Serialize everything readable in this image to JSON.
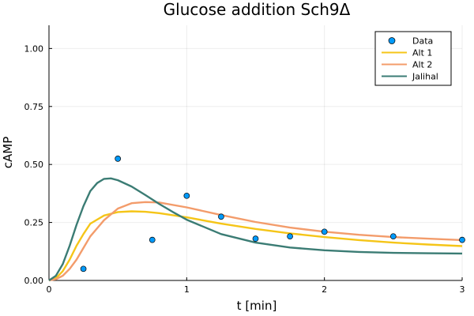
{
  "chart_data": {
    "type": "line",
    "title": "Glucose addition Sch9Δ",
    "xlabel": "t [min]",
    "ylabel": "cAMP",
    "xlim": [
      0,
      3
    ],
    "ylim": [
      0,
      1.1
    ],
    "x_ticks": [
      0,
      1,
      2,
      3
    ],
    "x_tick_labels": [
      "0",
      "1",
      "2",
      "3"
    ],
    "y_ticks": [
      0,
      0.25,
      0.5,
      0.75,
      1.0
    ],
    "y_tick_labels": [
      "0.00",
      "0.25",
      "0.50",
      "0.75",
      "1.00"
    ],
    "grid": true,
    "legend_position": "top-right",
    "scatter": {
      "name": "Data",
      "color": "#009AFA",
      "x": [
        0.25,
        0.5,
        0.75,
        1.0,
        1.25,
        1.5,
        1.75,
        2.0,
        2.5,
        3.0
      ],
      "y": [
        0.05,
        0.525,
        0.175,
        0.365,
        0.275,
        0.18,
        0.19,
        0.21,
        0.19,
        0.175
      ]
    },
    "series": [
      {
        "name": "Alt 1",
        "color": "#F5C518",
        "x": [
          0,
          0.05,
          0.1,
          0.15,
          0.2,
          0.25,
          0.3,
          0.4,
          0.5,
          0.6,
          0.7,
          0.8,
          1.0,
          1.25,
          1.5,
          1.75,
          2.0,
          2.25,
          2.5,
          2.75,
          3.0
        ],
        "y": [
          0,
          0.01,
          0.04,
          0.09,
          0.15,
          0.2,
          0.245,
          0.28,
          0.295,
          0.298,
          0.296,
          0.29,
          0.272,
          0.245,
          0.222,
          0.203,
          0.187,
          0.174,
          0.163,
          0.155,
          0.148
        ]
      },
      {
        "name": "Alt 2",
        "color": "#F39C6B",
        "x": [
          0,
          0.05,
          0.1,
          0.15,
          0.2,
          0.25,
          0.3,
          0.4,
          0.5,
          0.6,
          0.7,
          0.8,
          1.0,
          1.25,
          1.5,
          1.75,
          2.0,
          2.25,
          2.5,
          2.75,
          3.0
        ],
        "y": [
          0,
          0.005,
          0.02,
          0.05,
          0.09,
          0.14,
          0.19,
          0.26,
          0.31,
          0.333,
          0.338,
          0.336,
          0.315,
          0.282,
          0.252,
          0.228,
          0.21,
          0.197,
          0.187,
          0.18,
          0.174
        ]
      },
      {
        "name": "Jalihal",
        "color": "#3B7C74",
        "x": [
          0,
          0.05,
          0.1,
          0.15,
          0.2,
          0.25,
          0.3,
          0.35,
          0.4,
          0.45,
          0.5,
          0.6,
          0.7,
          0.8,
          0.9,
          1.0,
          1.25,
          1.5,
          1.75,
          2.0,
          2.25,
          2.5,
          2.75,
          3.0
        ],
        "y": [
          0,
          0.02,
          0.07,
          0.15,
          0.24,
          0.32,
          0.385,
          0.42,
          0.438,
          0.44,
          0.432,
          0.405,
          0.368,
          0.33,
          0.295,
          0.262,
          0.2,
          0.163,
          0.142,
          0.13,
          0.123,
          0.119,
          0.117,
          0.116
        ]
      }
    ]
  }
}
